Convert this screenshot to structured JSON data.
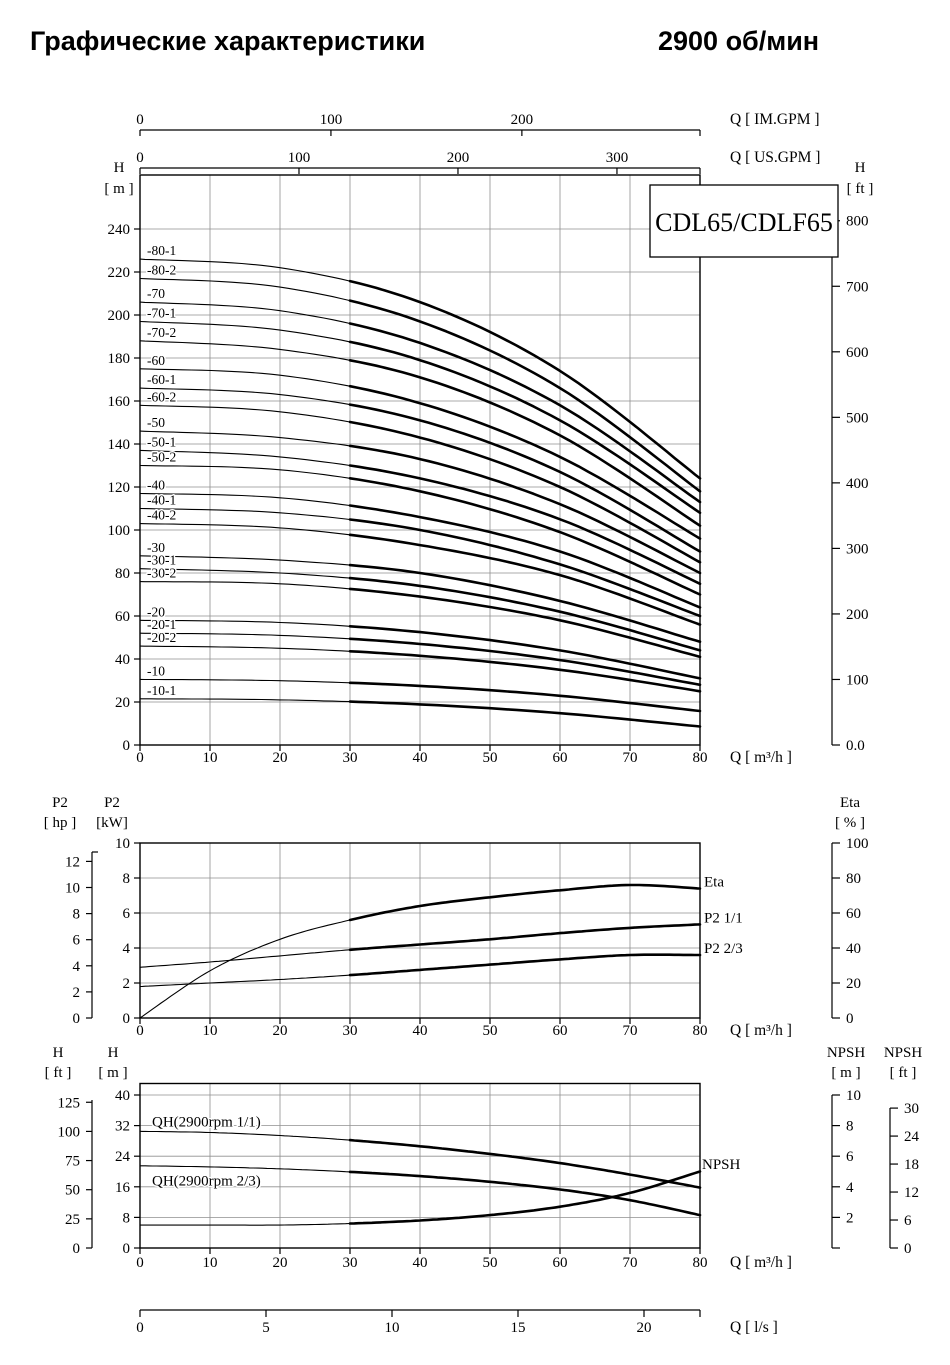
{
  "header": {
    "title": "Графические характеристики",
    "rpm": "2900 об/мин"
  },
  "model_box": {
    "label": "CDL65/CDLF65"
  },
  "chart_data": [
    {
      "id": "head-capacity",
      "type": "line",
      "x_axis": {
        "label": "Q [ m³/h ]",
        "range": [
          0,
          80
        ],
        "ticks": [
          0,
          10,
          20,
          30,
          40,
          50,
          60,
          70,
          80
        ]
      },
      "top_axes": [
        {
          "id": "im-gpm",
          "label": "Q [ IM.GPM ]",
          "ticks": [
            0,
            100,
            200
          ]
        },
        {
          "id": "us-gpm",
          "label": "Q [ US.GPM ]",
          "ticks": [
            0,
            100,
            200,
            300
          ]
        }
      ],
      "y_left": {
        "title_lines": [
          "H",
          "[ m ]"
        ],
        "range": [
          0,
          265
        ],
        "ticks": [
          0,
          20,
          40,
          60,
          80,
          100,
          120,
          140,
          160,
          180,
          200,
          220,
          240
        ]
      },
      "y_right": {
        "title_lines": [
          "H",
          "[ ft ]"
        ],
        "ticks": [
          800,
          700,
          600,
          500,
          400,
          300,
          200,
          100
        ],
        "zero_label": "0.0"
      },
      "x_values": [
        0,
        20,
        40,
        60,
        80
      ],
      "series": [
        {
          "name": "-80-1",
          "values": [
            226,
            222,
            206,
            174,
            124
          ]
        },
        {
          "name": "-80-2",
          "values": [
            217,
            213,
            197,
            166,
            118
          ]
        },
        {
          "name": "-70",
          "values": [
            206,
            202,
            187,
            158,
            113
          ]
        },
        {
          "name": "-70-1",
          "values": [
            197,
            193,
            179,
            151,
            108
          ]
        },
        {
          "name": "-70-2",
          "values": [
            188,
            184,
            171,
            144,
            102
          ]
        },
        {
          "name": "-60",
          "values": [
            175,
            172,
            159,
            134,
            96
          ]
        },
        {
          "name": "-60-1",
          "values": [
            166,
            163,
            151,
            127,
            90
          ]
        },
        {
          "name": "-60-2",
          "values": [
            158,
            155,
            143,
            120,
            85
          ]
        },
        {
          "name": "-50",
          "values": [
            146,
            143,
            133,
            112,
            80
          ]
        },
        {
          "name": "-50-1",
          "values": [
            137,
            134,
            124,
            105,
            75
          ]
        },
        {
          "name": "-50-2",
          "values": [
            130,
            128,
            118,
            99,
            70
          ]
        },
        {
          "name": "-40",
          "values": [
            117,
            115,
            106,
            90,
            64
          ]
        },
        {
          "name": "-40-1",
          "values": [
            110,
            108,
            100,
            84,
            60
          ]
        },
        {
          "name": "-40-2",
          "values": [
            103,
            101,
            93,
            79,
            56
          ]
        },
        {
          "name": "-30",
          "values": [
            88,
            86,
            80,
            67,
            48
          ]
        },
        {
          "name": "-30-1",
          "values": [
            82,
            80,
            74,
            62,
            44
          ]
        },
        {
          "name": "-30-2",
          "values": [
            76,
            75,
            69,
            58,
            41
          ]
        },
        {
          "name": "-20",
          "values": [
            58,
            57,
            52.5,
            44,
            31
          ]
        },
        {
          "name": "-20-1",
          "values": [
            52,
            51,
            47,
            39.5,
            28
          ]
        },
        {
          "name": "-20-2",
          "values": [
            46,
            45,
            41.5,
            35,
            25
          ]
        },
        {
          "name": "-10",
          "values": [
            30.5,
            29.9,
            27.5,
            22.9,
            15.8
          ]
        },
        {
          "name": "-10-1",
          "values": [
            21.5,
            21,
            18.9,
            14.8,
            8.6
          ]
        }
      ]
    },
    {
      "id": "power-efficiency",
      "type": "line",
      "x_axis": {
        "label": "Q [ m³/h ]",
        "range": [
          0,
          80
        ],
        "ticks": [
          0,
          10,
          20,
          30,
          40,
          50,
          60,
          70,
          80
        ]
      },
      "y_hp": {
        "title_lines": [
          "P2",
          "[ hp ]"
        ],
        "ticks": [
          0,
          2,
          4,
          6,
          8,
          10,
          12
        ]
      },
      "y_kw": {
        "title_lines": [
          "P2",
          "[kW]"
        ],
        "range": [
          0,
          10
        ],
        "ticks": [
          0,
          2,
          4,
          6,
          8,
          10
        ]
      },
      "y_eta": {
        "title_lines": [
          "Eta",
          "[ % ]"
        ],
        "range": [
          0,
          100
        ],
        "ticks": [
          0,
          20,
          40,
          60,
          80,
          100
        ]
      },
      "x_values": [
        0,
        10,
        20,
        30,
        40,
        50,
        60,
        70,
        80
      ],
      "series": [
        {
          "name": "Eta",
          "scale": "eta",
          "values": [
            0,
            27,
            45,
            56,
            64,
            69,
            73,
            76,
            74
          ]
        },
        {
          "name": "P2  1/1",
          "scale": "kw",
          "values": [
            2.9,
            3.2,
            3.55,
            3.9,
            4.2,
            4.5,
            4.85,
            5.15,
            5.35
          ]
        },
        {
          "name": "P2  2/3",
          "scale": "kw",
          "values": [
            1.8,
            2.0,
            2.2,
            2.45,
            2.75,
            3.05,
            3.35,
            3.6,
            3.6
          ]
        }
      ]
    },
    {
      "id": "qh-npsh",
      "type": "line",
      "x_axis": {
        "label": "Q [ m³/h ]",
        "range": [
          0,
          80
        ],
        "ticks": [
          0,
          10,
          20,
          30,
          40,
          50,
          60,
          70,
          80
        ]
      },
      "x_axis_ls": {
        "label": "Q [ l/s ]",
        "ticks": [
          0,
          5,
          10,
          15,
          20
        ]
      },
      "y_ft": {
        "title_lines": [
          "H",
          "[ ft ]"
        ],
        "ticks": [
          0,
          25,
          50,
          75,
          100,
          125
        ]
      },
      "y_m": {
        "title_lines": [
          "H",
          "[ m ]"
        ],
        "range": [
          0,
          43
        ],
        "ticks": [
          0,
          8,
          16,
          24,
          32,
          40
        ]
      },
      "y_npsh_m": {
        "title_lines": [
          "NPSH",
          "[ m ]"
        ],
        "ticks": [
          2,
          4,
          6,
          8,
          10
        ]
      },
      "y_npsh_ft": {
        "title_lines": [
          "NPSH",
          "[ ft ]"
        ],
        "ticks": [
          0,
          6,
          12,
          18,
          24,
          30
        ]
      },
      "x_values": [
        0,
        10,
        20,
        30,
        40,
        50,
        60,
        70,
        80
      ],
      "series": [
        {
          "name": "QH(2900rpm 1/1)",
          "scale": "m",
          "values": [
            30.5,
            30.2,
            29.4,
            28.2,
            26.6,
            24.6,
            22.2,
            19.2,
            15.8
          ]
        },
        {
          "name": "QH(2900rpm 2/3)",
          "scale": "m",
          "values": [
            21.5,
            21.2,
            20.7,
            19.9,
            18.8,
            17.3,
            15.3,
            12.5,
            8.6
          ]
        },
        {
          "name": "NPSH",
          "scale": "npsh",
          "values": [
            1.5,
            1.5,
            1.5,
            1.6,
            1.8,
            2.15,
            2.7,
            3.6,
            5.0
          ]
        }
      ]
    }
  ]
}
